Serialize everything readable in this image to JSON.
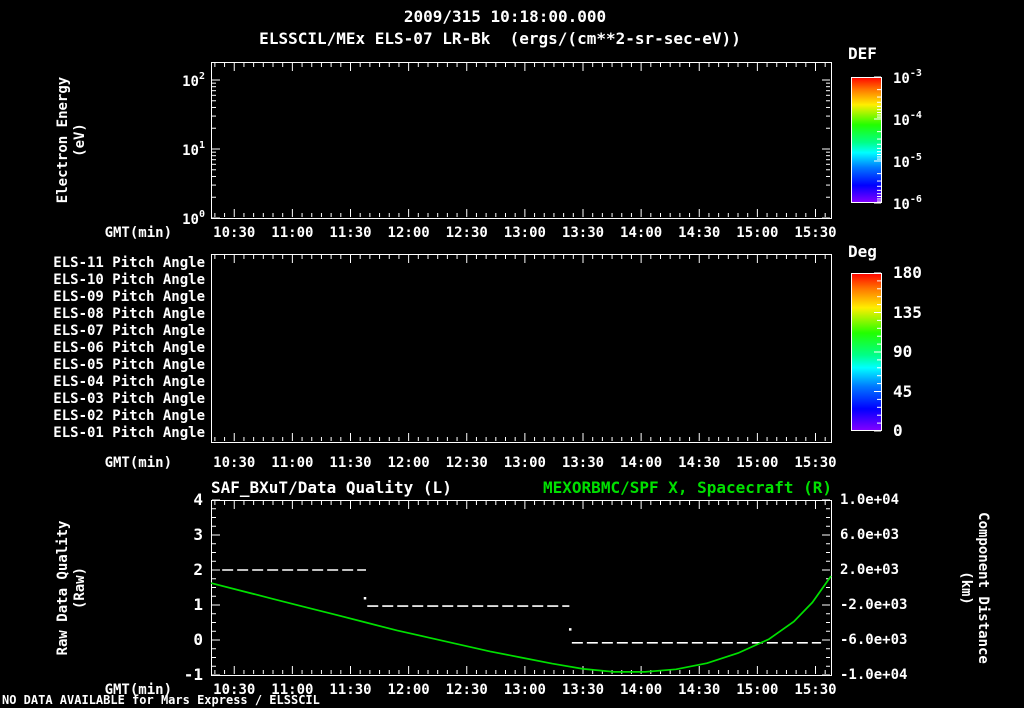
{
  "header": {
    "datetime": "2009/315 10:18:00.000",
    "title": "ELSSCIL/MEx ELS-07 LR-Bk  (ergs/(cm**2-sr-sec-eV))"
  },
  "footer": {
    "no_data": "NO DATA AVAILABLE for Mars Express / ELSSCIL"
  },
  "colors": {
    "background": "#000000",
    "foreground": "#ffffff",
    "accent_green": "#00e000",
    "colorbar_stops": [
      {
        "off": 0.0,
        "color": "#ff0000"
      },
      {
        "off": 0.1,
        "color": "#ff7700"
      },
      {
        "off": 0.22,
        "color": "#ffee00"
      },
      {
        "off": 0.38,
        "color": "#22ff00"
      },
      {
        "off": 0.52,
        "color": "#00ff88"
      },
      {
        "off": 0.6,
        "color": "#00ffff"
      },
      {
        "off": 0.72,
        "color": "#0077ff"
      },
      {
        "off": 0.86,
        "color": "#0000ff"
      },
      {
        "off": 1.0,
        "color": "#8800ff"
      }
    ]
  },
  "time_axis": {
    "label": "GMT(min)",
    "tick_labels": [
      "10:30",
      "11:00",
      "11:30",
      "12:00",
      "12:30",
      "13:00",
      "13:30",
      "14:00",
      "14:30",
      "15:00",
      "15:30"
    ],
    "start_min": 618,
    "end_min": 938,
    "first_major_min": 630,
    "major_step_min": 30,
    "minor_step_min": 5
  },
  "energy_panel": {
    "ylabel1": "Electron Energy",
    "ylabel2": "(eV)",
    "yticks": [
      {
        "b": "10",
        "e": "2"
      },
      {
        "b": "10",
        "e": "1"
      },
      {
        "b": "10",
        "e": "0"
      }
    ],
    "colorbar": {
      "title": "DEF",
      "tick_labels": [
        {
          "b": "10",
          "e": "-3"
        },
        {
          "b": "10",
          "e": "-4"
        },
        {
          "b": "10",
          "e": "-5"
        },
        {
          "b": "10",
          "e": "-6"
        }
      ]
    }
  },
  "pitch_panel": {
    "row_labels": [
      "ELS-11 Pitch Angle",
      "ELS-10 Pitch Angle",
      "ELS-09 Pitch Angle",
      "ELS-08 Pitch Angle",
      "ELS-07 Pitch Angle",
      "ELS-06 Pitch Angle",
      "ELS-05 Pitch Angle",
      "ELS-04 Pitch Angle",
      "ELS-03 Pitch Angle",
      "ELS-02 Pitch Angle",
      "ELS-01 Pitch Angle"
    ],
    "colorbar": {
      "title": "Deg",
      "tick_labels": [
        "180",
        "135",
        "90",
        "45",
        "0"
      ]
    }
  },
  "quality_panel": {
    "title_left": "SAF_BXuT/Data Quality (L)",
    "title_right": "MEXORBMC/SPF X, Spacecraft (R)",
    "ylabel1": "Raw Data Quality",
    "ylabel2": "(Raw)",
    "yticks": [
      "4",
      "3",
      "2",
      "1",
      "0",
      "-1"
    ],
    "right_label1": "Component Distance",
    "right_label2": "(km)",
    "right_yticks": [
      "1.0e+04",
      "6.0e+03",
      "2.0e+03",
      "-2.0e+03",
      "-6.0e+03",
      "-1.0e+04"
    ]
  },
  "chart_data": [
    {
      "type": "heatmap",
      "panel": "electron-energy-spectrogram",
      "title": "ELSSCIL/MEx ELS-07 LR-Bk (ergs/(cm**2-sr-sec-eV))",
      "xlabel": "GMT(min)",
      "x_tick_labels": [
        "10:30",
        "11:00",
        "11:30",
        "12:00",
        "12:30",
        "13:00",
        "13:30",
        "14:00",
        "14:30",
        "15:00",
        "15:30"
      ],
      "ylabel": "Electron Energy (eV)",
      "y_scale": "log",
      "y_ticks_eV": [
        100,
        10,
        1
      ],
      "colorbar": {
        "title": "DEF",
        "scale": "log",
        "ticks": [
          0.001,
          0.0001,
          1e-05,
          1e-06
        ]
      },
      "values": [],
      "note": "NO DATA AVAILABLE"
    },
    {
      "type": "heatmap",
      "panel": "pitch-angle-rows",
      "rows": [
        "ELS-11",
        "ELS-10",
        "ELS-09",
        "ELS-08",
        "ELS-07",
        "ELS-06",
        "ELS-05",
        "ELS-04",
        "ELS-03",
        "ELS-02",
        "ELS-01"
      ],
      "colorbar": {
        "title": "Deg",
        "ticks": [
          180,
          135,
          90,
          45,
          0
        ]
      },
      "values": [],
      "note": "NO DATA AVAILABLE"
    },
    {
      "type": "line",
      "panel": "quality-and-spacecraft",
      "xlabel": "GMT(min)",
      "x_tick_labels": [
        "10:30",
        "11:00",
        "11:30",
        "12:00",
        "12:30",
        "13:00",
        "13:30",
        "14:00",
        "14:30",
        "15:00",
        "15:30"
      ],
      "left_axis": {
        "label": "Raw Data Quality (Raw)",
        "range": [
          -1,
          4
        ],
        "ticks": [
          4,
          3,
          2,
          1,
          0,
          -1
        ]
      },
      "right_axis": {
        "label": "Component Distance (km)",
        "range": [
          -10000,
          10000
        ],
        "ticks": [
          10000,
          6000,
          2000,
          -2000,
          -6000,
          -10000
        ]
      },
      "series": [
        {
          "name": "SAF_BXuT/Data Quality (L)",
          "axis": "left",
          "color": "#ffffff",
          "style": "dashed-segments",
          "segments": [
            {
              "value": 2.0,
              "frac_start": 0.018,
              "frac_end": 0.25
            },
            {
              "value": 0.97,
              "frac_start": 0.252,
              "frac_end": 0.578
            },
            {
              "value": -0.08,
              "frac_start": 0.582,
              "frac_end": 0.984
            }
          ],
          "isolated_points": [
            {
              "frac": 0.248,
              "value": 1.2
            },
            {
              "frac": 0.579,
              "value": 0.31
            }
          ]
        },
        {
          "name": "MEXORBMC/SPF X, Spacecraft (R)",
          "axis": "right",
          "color": "#00e000",
          "style": "solid",
          "frac": [
            0.0,
            0.05,
            0.1,
            0.15,
            0.2,
            0.25,
            0.3,
            0.35,
            0.4,
            0.45,
            0.5,
            0.55,
            0.6,
            0.65,
            0.7,
            0.75,
            0.8,
            0.85,
            0.9,
            0.94,
            0.97,
            1.0
          ],
          "km": [
            500,
            -400,
            -1300,
            -2200,
            -3100,
            -4000,
            -4900,
            -5700,
            -6500,
            -7300,
            -8000,
            -8700,
            -9300,
            -9650,
            -9650,
            -9350,
            -8650,
            -7500,
            -5900,
            -3900,
            -1700,
            1300
          ]
        }
      ]
    }
  ]
}
